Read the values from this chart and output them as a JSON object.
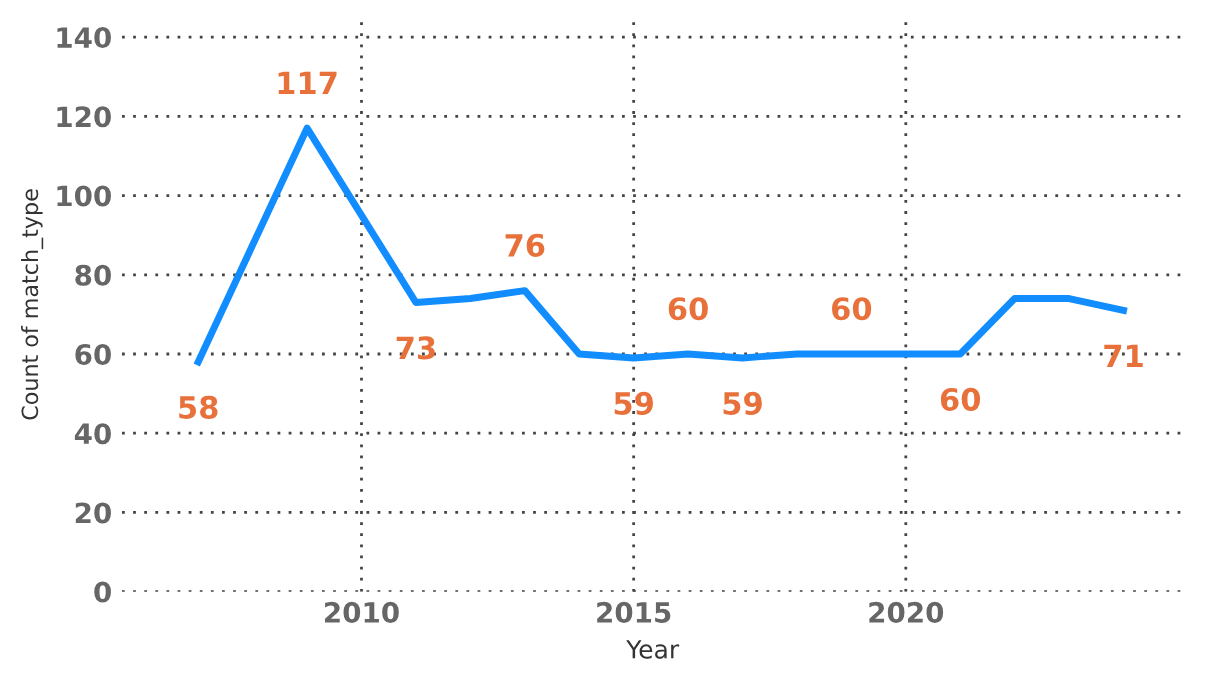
{
  "chart_data": {
    "type": "line",
    "xlabel": "Year",
    "ylabel": "Count of match_type",
    "x": [
      2007,
      2009,
      2011,
      2012,
      2013,
      2014,
      2015,
      2016,
      2017,
      2018,
      2019,
      2020,
      2021,
      2022,
      2023,
      2024
    ],
    "series": [
      {
        "color": "#118dff",
        "values": [
          58,
          117,
          73,
          74,
          76,
          60,
          59,
          60,
          59,
          60,
          60,
          60,
          60,
          74,
          74,
          71
        ],
        "value_labels": [
          "58",
          "117",
          "73",
          null,
          "76",
          null,
          "59",
          "60",
          "59",
          null,
          "60",
          null,
          "60",
          null,
          null,
          "71"
        ]
      }
    ],
    "xlim": [
      2005.6,
      2025.1
    ],
    "xticks": [
      2010,
      2015,
      2020
    ],
    "ylim": [
      0,
      145
    ],
    "yticks": [
      0,
      20,
      40,
      60,
      80,
      100,
      120,
      140
    ],
    "grid": true,
    "marker": "none",
    "line_style": "solid"
  }
}
